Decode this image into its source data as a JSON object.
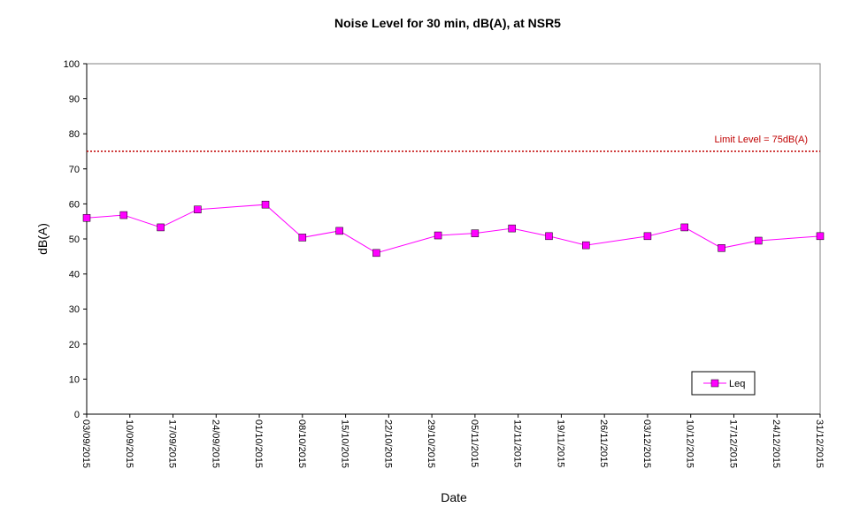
{
  "chart_data": {
    "type": "line",
    "title": "Noise Level for 30 min,  dB(A), at NSR5",
    "xlabel": "Date",
    "ylabel": "dB(A)",
    "ylim": [
      0,
      100
    ],
    "yticks": [
      0,
      10,
      20,
      30,
      40,
      50,
      60,
      70,
      80,
      90,
      100
    ],
    "xlim": [
      "2015-09-03",
      "2015-12-31"
    ],
    "xtick_labels": [
      "03/09/2015",
      "10/09/2015",
      "17/09/2015",
      "24/09/2015",
      "01/10/2015",
      "08/10/2015",
      "15/10/2015",
      "22/10/2015",
      "29/10/2015",
      "05/11/2015",
      "12/11/2015",
      "19/11/2015",
      "26/11/2015",
      "03/12/2015",
      "10/12/2015",
      "17/12/2015",
      "24/12/2015",
      "31/12/2015"
    ],
    "grid": false,
    "legend_position": "bottom-right",
    "series": [
      {
        "name": "Leq",
        "color": "#ff00ff",
        "marker": "square",
        "points": [
          {
            "x": "2015-09-03",
            "y": 56.0
          },
          {
            "x": "2015-09-09",
            "y": 56.8
          },
          {
            "x": "2015-09-15",
            "y": 53.3
          },
          {
            "x": "2015-09-21",
            "y": 58.4
          },
          {
            "x": "2015-10-02",
            "y": 59.8
          },
          {
            "x": "2015-10-08",
            "y": 50.4
          },
          {
            "x": "2015-10-14",
            "y": 52.3
          },
          {
            "x": "2015-10-20",
            "y": 46.0
          },
          {
            "x": "2015-10-30",
            "y": 51.0
          },
          {
            "x": "2015-11-05",
            "y": 51.6
          },
          {
            "x": "2015-11-11",
            "y": 53.0
          },
          {
            "x": "2015-11-17",
            "y": 50.8
          },
          {
            "x": "2015-11-23",
            "y": 48.2
          },
          {
            "x": "2015-12-03",
            "y": 50.8
          },
          {
            "x": "2015-12-09",
            "y": 53.3
          },
          {
            "x": "2015-12-15",
            "y": 47.4
          },
          {
            "x": "2015-12-21",
            "y": 49.5
          },
          {
            "x": "2015-12-31",
            "y": 50.8
          }
        ]
      }
    ],
    "limit_line": {
      "value": 75,
      "label": "Limit Level  = 75dB(A)",
      "color": "#c00000"
    }
  }
}
